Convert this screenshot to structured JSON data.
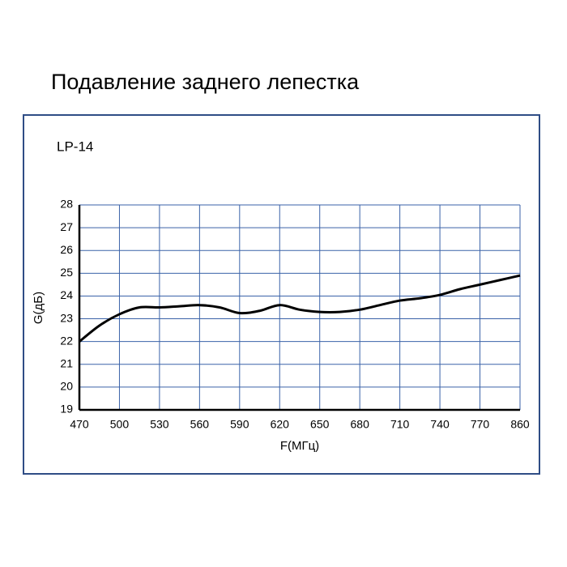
{
  "chart_data": {
    "type": "line",
    "title": "Подавление заднего лепестка",
    "subtitle": "LP-14",
    "x_label": "F(МГц)",
    "y_label": "G(дБ)",
    "categories": [
      "470",
      null,
      "500",
      null,
      "530",
      null,
      "560",
      null,
      "590",
      null,
      "620",
      null,
      "650",
      null,
      "680",
      null,
      "710",
      null,
      "740",
      null,
      "770",
      null,
      "860"
    ],
    "values": [
      22.0,
      22.7,
      23.2,
      23.5,
      23.5,
      23.55,
      23.6,
      23.5,
      23.25,
      23.35,
      23.6,
      23.4,
      23.3,
      23.3,
      23.4,
      23.6,
      23.8,
      23.9,
      24.05,
      24.3,
      24.5,
      24.7,
      24.9
    ],
    "color": "#000000",
    "ylim": [
      19,
      28
    ],
    "yticks": [
      19,
      20,
      21,
      22,
      23,
      24,
      25,
      26,
      27,
      28
    ],
    "grid": true,
    "grid_color": "#3a62a8"
  }
}
